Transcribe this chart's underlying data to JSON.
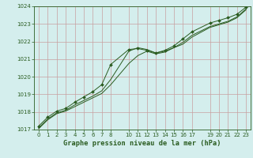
{
  "title": "Graphe pression niveau de la mer (hPa)",
  "bg_color": "#d4eeed",
  "grid_color": "#c8a0a0",
  "line_color": "#2a5c20",
  "marker_color": "#2a5c20",
  "xlim": [
    -0.5,
    23.5
  ],
  "ylim": [
    1017,
    1024
  ],
  "xticks": [
    0,
    1,
    2,
    3,
    4,
    5,
    6,
    7,
    8,
    10,
    11,
    12,
    13,
    14,
    15,
    16,
    17,
    19,
    20,
    21,
    22,
    23
  ],
  "yticks": [
    1017,
    1018,
    1019,
    1020,
    1021,
    1022,
    1023,
    1024
  ],
  "series1_x": [
    0,
    1,
    2,
    3,
    4,
    5,
    6,
    7,
    8,
    10,
    11,
    12,
    13,
    14,
    15,
    16,
    17,
    19,
    20,
    21,
    22,
    23
  ],
  "series1_y": [
    1017.2,
    1017.7,
    1018.05,
    1018.2,
    1018.55,
    1018.85,
    1019.15,
    1019.55,
    1020.7,
    1021.55,
    1021.6,
    1021.5,
    1021.35,
    1021.5,
    1021.75,
    1022.15,
    1022.55,
    1023.05,
    1023.2,
    1023.35,
    1023.55,
    1023.95
  ],
  "series2_x": [
    0,
    1,
    2,
    3,
    4,
    5,
    6,
    7,
    8,
    10,
    11,
    12,
    13,
    14,
    15,
    16,
    17,
    19,
    20,
    21,
    22,
    23
  ],
  "series2_y": [
    1017.1,
    1017.6,
    1017.95,
    1018.1,
    1018.4,
    1018.65,
    1018.9,
    1019.2,
    1019.85,
    1021.45,
    1021.65,
    1021.55,
    1021.35,
    1021.45,
    1021.65,
    1021.95,
    1022.35,
    1022.85,
    1023.0,
    1023.15,
    1023.4,
    1023.85
  ],
  "series3_x": [
    0,
    1,
    2,
    3,
    4,
    5,
    6,
    7,
    8,
    10,
    11,
    12,
    13,
    14,
    15,
    16,
    17,
    19,
    20,
    21,
    22,
    23
  ],
  "series3_y": [
    1017.05,
    1017.55,
    1017.9,
    1018.05,
    1018.3,
    1018.55,
    1018.8,
    1019.05,
    1019.55,
    1020.75,
    1021.2,
    1021.45,
    1021.3,
    1021.4,
    1021.65,
    1021.85,
    1022.25,
    1022.8,
    1022.95,
    1023.1,
    1023.35,
    1023.8
  ]
}
